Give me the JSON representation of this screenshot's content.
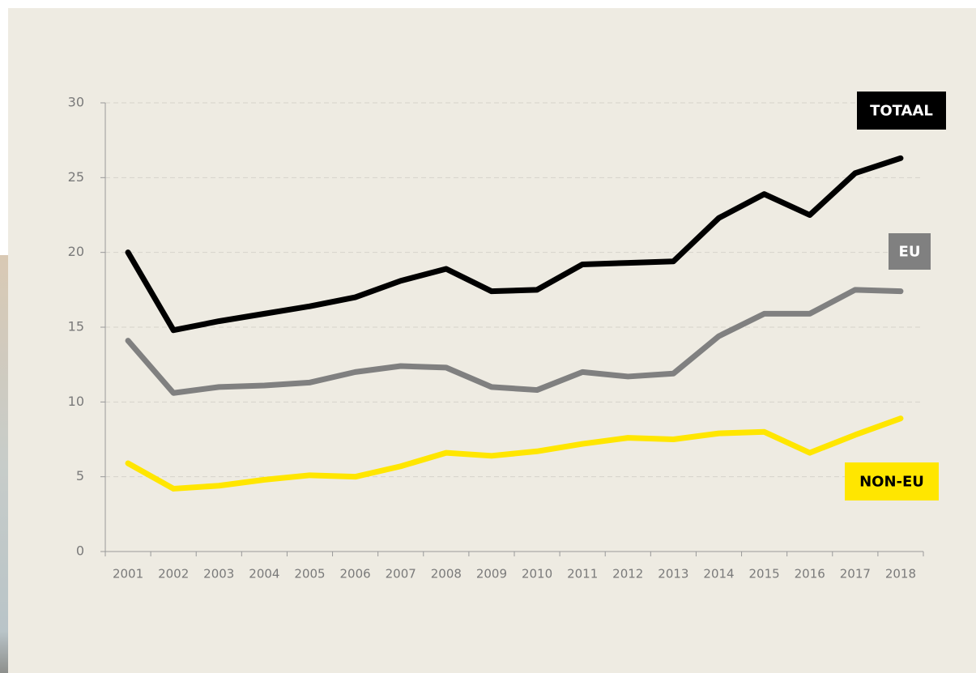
{
  "chart_data": {
    "type": "line",
    "categories": [
      "2001",
      "2002",
      "2003",
      "2004",
      "2005",
      "2006",
      "2007",
      "2008",
      "2009",
      "2010",
      "2011",
      "2012",
      "2013",
      "2014",
      "2015",
      "2016",
      "2017",
      "2018"
    ],
    "series": [
      {
        "name": "TOTAAL",
        "color": "#000000",
        "label_text_color": "#ffffff",
        "values": [
          20.0,
          14.8,
          15.4,
          15.9,
          16.4,
          17.0,
          18.1,
          18.9,
          17.4,
          17.5,
          19.2,
          19.3,
          19.4,
          22.3,
          23.9,
          22.5,
          25.3,
          26.3
        ]
      },
      {
        "name": "EU",
        "color": "#808080",
        "label_text_color": "#ffffff",
        "values": [
          14.1,
          10.6,
          11.0,
          11.1,
          11.3,
          12.0,
          12.4,
          12.3,
          11.0,
          10.8,
          12.0,
          11.7,
          11.9,
          14.4,
          15.9,
          15.9,
          17.5,
          17.4
        ]
      },
      {
        "name": "NON-EU",
        "color": "#ffe600",
        "label_text_color": "#000000",
        "values": [
          5.9,
          4.2,
          4.4,
          4.8,
          5.1,
          5.0,
          5.7,
          6.6,
          6.4,
          6.7,
          7.2,
          7.6,
          7.5,
          7.9,
          8.0,
          6.6,
          7.8,
          8.9
        ]
      }
    ],
    "ylim": [
      0,
      30
    ],
    "yticks": [
      0,
      5,
      10,
      15,
      20,
      25,
      30
    ],
    "grid": true
  }
}
